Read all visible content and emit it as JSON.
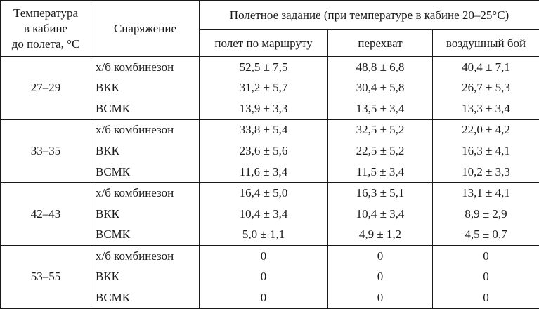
{
  "header": {
    "temp_line1": "Температура",
    "temp_line2": "в кабине",
    "temp_line3": "до полета, °С",
    "equipment": "Снаряжение",
    "task": "Полетное задание (при температуре в кабине 20–25°С)",
    "sub": [
      "полет по маршруту",
      "перехват",
      "воздушный бой"
    ]
  },
  "groups": [
    {
      "temp": "27–29",
      "rows": [
        {
          "equipment": "х/б комбинезон",
          "values": [
            "52,5 ± 7,5",
            "48,8 ± 6,8",
            "40,4 ± 7,1"
          ]
        },
        {
          "equipment": "ВКК",
          "values": [
            "31,2 ± 5,7",
            "30,4 ± 5,8",
            "26,7 ± 5,3"
          ]
        },
        {
          "equipment": "ВСМК",
          "values": [
            "13,9 ± 3,3",
            "13,5 ± 3,4",
            "13,3 ± 3,4"
          ]
        }
      ]
    },
    {
      "temp": "33–35",
      "rows": [
        {
          "equipment": "х/б комбинезон",
          "values": [
            "33,8 ± 5,4",
            "32,5 ± 5,2",
            "22,0 ± 4,2"
          ]
        },
        {
          "equipment": "ВКК",
          "values": [
            "23,6 ± 5,6",
            "22,5 ± 5,2",
            "16,3 ± 4,1"
          ]
        },
        {
          "equipment": "ВСМК",
          "values": [
            "11,6 ± 3,4",
            "11,5 ± 3,4",
            "10,2 ± 3,3"
          ]
        }
      ]
    },
    {
      "temp": "42–43",
      "rows": [
        {
          "equipment": "х/б комбинезон",
          "values": [
            "16,4 ± 5,0",
            "16,3 ± 5,1",
            "13,1 ± 4,1"
          ]
        },
        {
          "equipment": "ВКК",
          "values": [
            "10,4 ± 3,4",
            "10,4 ± 3,4",
            "8,9 ± 2,9"
          ]
        },
        {
          "equipment": "ВСМК",
          "values": [
            "5,0 ± 1,1",
            "4,9 ± 1,2",
            "4,5 ± 0,7"
          ]
        }
      ]
    },
    {
      "temp": "53–55",
      "rows": [
        {
          "equipment": "х/б комбинезон",
          "values": [
            "0",
            "0",
            "0"
          ]
        },
        {
          "equipment": "ВКК",
          "values": [
            "0",
            "0",
            "0"
          ]
        },
        {
          "equipment": "ВСМК",
          "values": [
            "0",
            "0",
            "0"
          ]
        }
      ]
    }
  ]
}
